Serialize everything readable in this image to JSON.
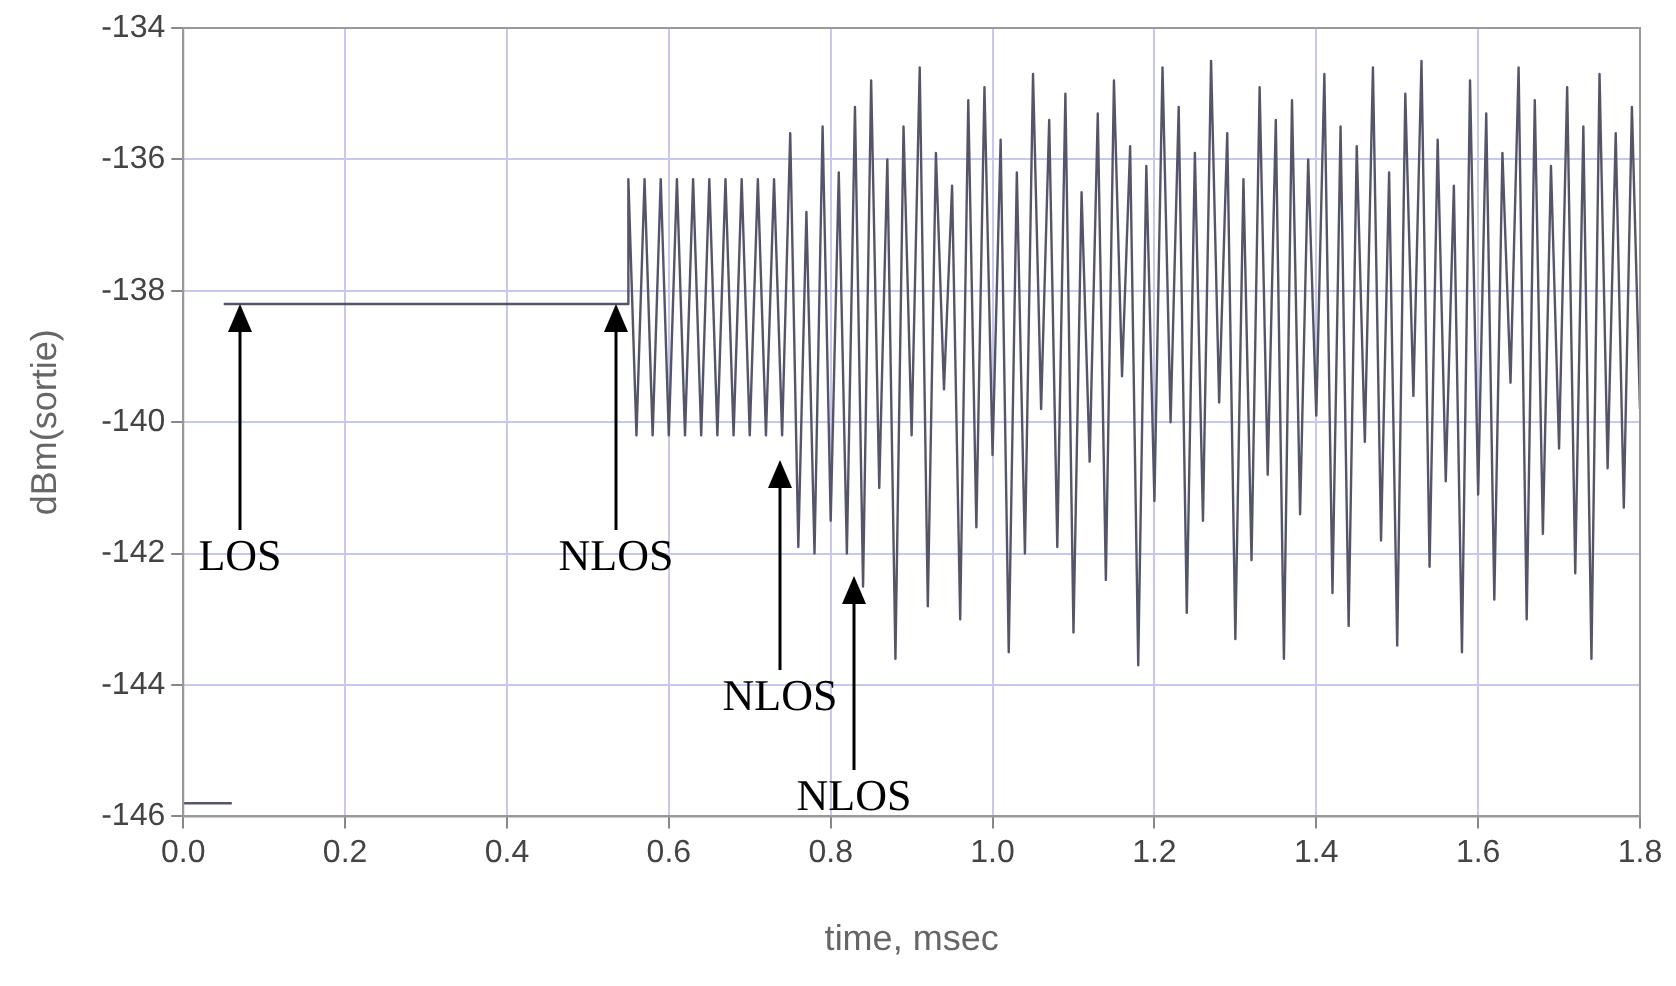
{
  "chart_data": {
    "type": "line",
    "xlabel": "time, msec",
    "ylabel": "dBm(sortie)",
    "xlim": [
      0,
      1.8
    ],
    "xticks": [
      {
        "value": 0,
        "label": "0.0"
      },
      0.2,
      0.4,
      0.6,
      0.8,
      {
        "value": 1,
        "label": "1.0"
      },
      1.2,
      1.4,
      1.6,
      1.8
    ],
    "ylim": [
      -146,
      -134
    ],
    "yticks": [
      -146,
      -144,
      -142,
      -140,
      -138,
      -136,
      -134
    ],
    "grid": true,
    "marker": "none",
    "line_style": "solid",
    "annotations": [
      "LOS",
      "NLOS",
      "NLOS",
      "NLOS"
    ],
    "series": [
      {
        "color": "#55556a",
        "x": [
          0,
          0.06
        ],
        "values": [
          -145.8,
          -145.8
        ]
      },
      {
        "color": "#55556a",
        "x": [
          0.05,
          0.55,
          0.55,
          0.56,
          0.57,
          0.58,
          0.59,
          0.6,
          0.61,
          0.62,
          0.63,
          0.64,
          0.65,
          0.66,
          0.67,
          0.68,
          0.69,
          0.7,
          0.71,
          0.72,
          0.73,
          0.74,
          0.75,
          0.76,
          0.77,
          0.78,
          0.79,
          0.8,
          0.81,
          0.82,
          0.83,
          0.84,
          0.85,
          0.86,
          0.87,
          0.88,
          0.89,
          0.9,
          0.91,
          0.92,
          0.93,
          0.94,
          0.95,
          0.96,
          0.97,
          0.98,
          0.99,
          1,
          1.01,
          1.02,
          1.03,
          1.04,
          1.05,
          1.06,
          1.07,
          1.08,
          1.09,
          1.1,
          1.11,
          1.12,
          1.13,
          1.14,
          1.15,
          1.16,
          1.17,
          1.18,
          1.19,
          1.2,
          1.21,
          1.22,
          1.23,
          1.24,
          1.25,
          1.26,
          1.27,
          1.28,
          1.29,
          1.3,
          1.31,
          1.32,
          1.33,
          1.34,
          1.35,
          1.36,
          1.37,
          1.38,
          1.39,
          1.4,
          1.41,
          1.42,
          1.43,
          1.44,
          1.45,
          1.46,
          1.47,
          1.48,
          1.49,
          1.5,
          1.51,
          1.52,
          1.53,
          1.54,
          1.55,
          1.56,
          1.57,
          1.58,
          1.59,
          1.6,
          1.61,
          1.62,
          1.63,
          1.64,
          1.65,
          1.66,
          1.67,
          1.68,
          1.69,
          1.7,
          1.71,
          1.72,
          1.73,
          1.74,
          1.75,
          1.76,
          1.77,
          1.78,
          1.79,
          1.8
        ],
        "values": [
          -138.2,
          -138.2,
          -136.3,
          -140.2,
          -136.3,
          -140.2,
          -136.3,
          -140.2,
          -136.3,
          -140.2,
          -136.3,
          -140.2,
          -136.3,
          -140.2,
          -136.3,
          -140.2,
          -136.3,
          -140.2,
          -136.3,
          -140.2,
          -136.3,
          -140.2,
          -135.6,
          -141.9,
          -136.8,
          -142.0,
          -135.5,
          -141.5,
          -136.2,
          -142.0,
          -135.2,
          -142.5,
          -134.8,
          -141.0,
          -136.0,
          -143.6,
          -135.5,
          -140.2,
          -134.6,
          -142.8,
          -135.9,
          -139.5,
          -136.4,
          -143.0,
          -135.1,
          -141.6,
          -134.9,
          -140.5,
          -135.7,
          -143.5,
          -136.2,
          -142.0,
          -134.7,
          -139.8,
          -135.4,
          -141.9,
          -135.0,
          -143.2,
          -136.5,
          -140.6,
          -135.3,
          -142.4,
          -134.8,
          -139.3,
          -135.8,
          -143.7,
          -136.1,
          -141.2,
          -134.6,
          -140.0,
          -135.2,
          -142.9,
          -135.9,
          -141.5,
          -134.5,
          -139.7,
          -135.6,
          -143.3,
          -136.3,
          -142.1,
          -134.9,
          -140.8,
          -135.4,
          -143.6,
          -135.1,
          -141.4,
          -136.0,
          -139.9,
          -134.7,
          -142.6,
          -135.5,
          -143.1,
          -135.8,
          -140.3,
          -134.6,
          -141.8,
          -136.2,
          -143.4,
          -135.0,
          -139.6,
          -134.5,
          -142.2,
          -135.7,
          -140.9,
          -136.4,
          -143.5,
          -134.8,
          -141.1,
          -135.3,
          -142.7,
          -135.9,
          -139.4,
          -134.6,
          -143.0,
          -135.1,
          -141.7,
          -136.1,
          -140.4,
          -134.9,
          -142.3,
          -135.5,
          -143.6,
          -134.7,
          -140.7,
          -135.6,
          -141.3,
          -135.2,
          -139.8
        ]
      }
    ]
  }
}
